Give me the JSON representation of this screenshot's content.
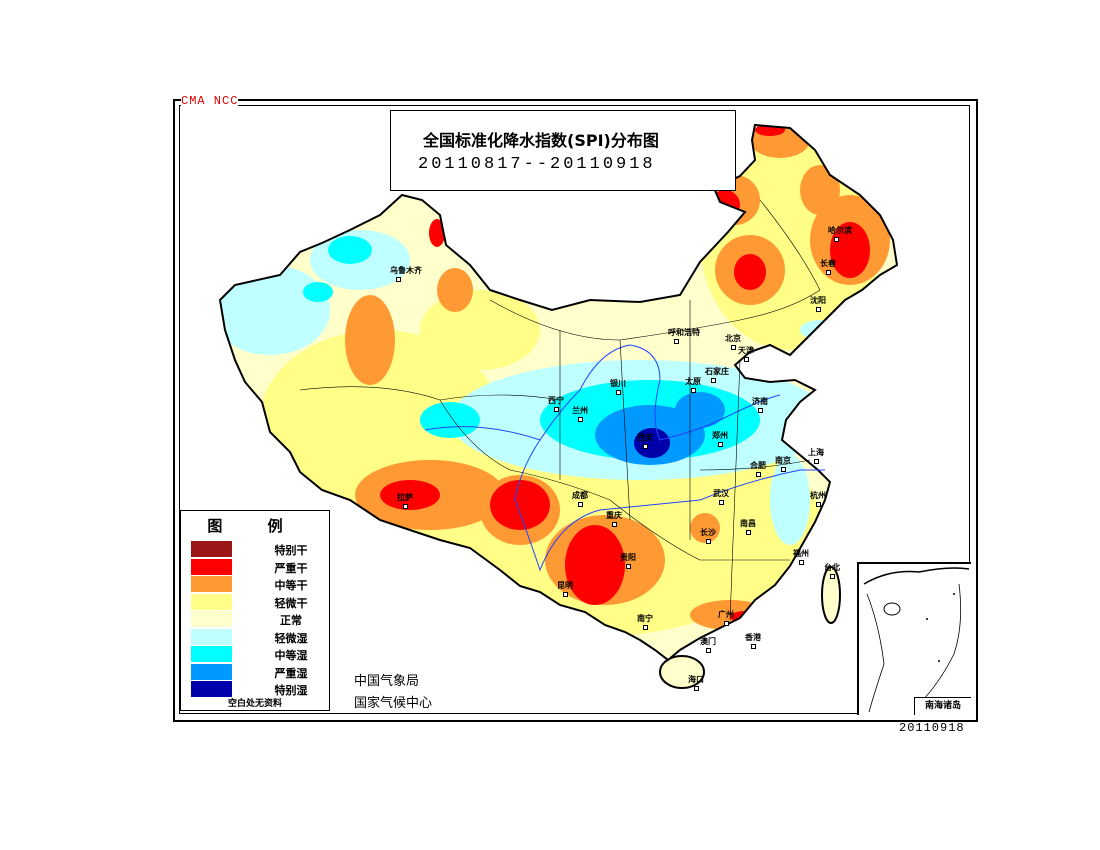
{
  "header": {
    "agency": "CMA NCC",
    "title": "全国标准化降水指数(SPI)分布图",
    "period": "20110817--20110918"
  },
  "legend": {
    "title": "图 例",
    "items": [
      {
        "label": "特别干",
        "color": "#9b1717"
      },
      {
        "label": "严重干",
        "color": "#ff0000"
      },
      {
        "label": "中等干",
        "color": "#ff9933"
      },
      {
        "label": "轻微干",
        "color": "#ffff88"
      },
      {
        "label": "正常",
        "color": "#ffffcc"
      },
      {
        "label": "轻微湿",
        "color": "#c0ffff"
      },
      {
        "label": "中等湿",
        "color": "#00ffff"
      },
      {
        "label": "严重湿",
        "color": "#0099ff"
      },
      {
        "label": "特别湿",
        "color": "#0000aa"
      }
    ],
    "note": "空白处无资料"
  },
  "organizations": [
    "中国气象局",
    "国家气候中心"
  ],
  "inset": {
    "label": "南海诸岛"
  },
  "date_stamp": "20110918",
  "cities": [
    "乌鲁木齐",
    "哈尔滨",
    "长春",
    "沈阳",
    "呼和浩特",
    "北京",
    "天津",
    "太原",
    "石家庄",
    "银川",
    "西宁",
    "兰州",
    "济南",
    "郑州",
    "西安",
    "合肥",
    "南京",
    "上海",
    "杭州",
    "武汉",
    "成都",
    "重庆",
    "贵阳",
    "长沙",
    "南昌",
    "福州",
    "台北",
    "昆明",
    "南宁",
    "广州",
    "澳门",
    "香港",
    "海口",
    "拉萨"
  ]
}
